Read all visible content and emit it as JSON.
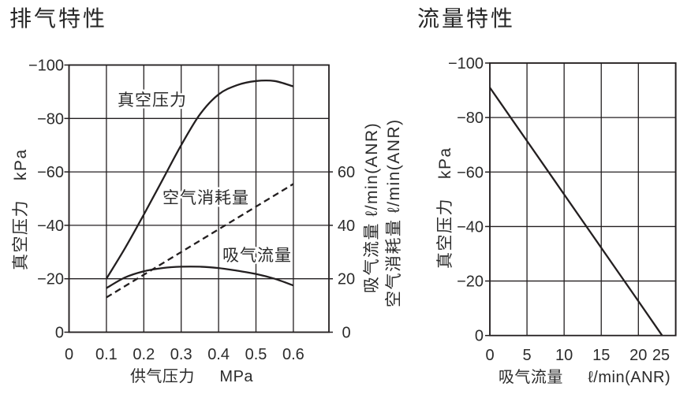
{
  "page": {
    "background": "#ffffff",
    "text_color": "#2b2b2b",
    "line_color": "#231f20"
  },
  "chart_data": [
    {
      "id": "exhaust",
      "type": "line",
      "title": "排气特性",
      "grid": true,
      "x_axis": {
        "title": "供气压力",
        "unit": "MPa",
        "tick_labels": [
          "0",
          "0.1",
          "0.2",
          "0.3",
          "0.4",
          "0.5",
          "0.6"
        ],
        "tick_values": [
          0,
          0.1,
          0.2,
          0.3,
          0.4,
          0.5,
          0.6
        ],
        "range": [
          0,
          0.695
        ]
      },
      "y_axis": {
        "title": "真空压力",
        "unit": "kPa",
        "tick_labels": [
          "0",
          "−20",
          "−40",
          "−60",
          "−80",
          "−100"
        ],
        "tick_values": [
          0,
          -20,
          -40,
          -60,
          -80,
          -100
        ],
        "range": [
          0,
          -100
        ]
      },
      "y2_axis": {
        "titles": [
          "吸气流量 ℓ/min(ANR)",
          "空气消耗量 ℓ/min(ANR)"
        ],
        "tick_labels": [
          "0",
          "20",
          "40",
          "60"
        ],
        "tick_values": [
          0,
          20,
          40,
          60
        ],
        "range": [
          0,
          100
        ]
      },
      "series": [
        {
          "key": "vacuum-pressure",
          "name": "真空压力",
          "axis": "y",
          "line": "solid",
          "points": [
            [
              0.1,
              -20
            ],
            [
              0.15,
              -31.5
            ],
            [
              0.2,
              -44
            ],
            [
              0.25,
              -57
            ],
            [
              0.3,
              -70
            ],
            [
              0.35,
              -81.5
            ],
            [
              0.4,
              -89
            ],
            [
              0.45,
              -92.5
            ],
            [
              0.5,
              -94
            ],
            [
              0.55,
              -94
            ],
            [
              0.6,
              -92
            ]
          ]
        },
        {
          "key": "air-consumption",
          "name": "空气消耗量",
          "axis": "y2",
          "line": "dashed",
          "points": [
            [
              0.1,
              13
            ],
            [
              0.2,
              21.5
            ],
            [
              0.3,
              30
            ],
            [
              0.4,
              38.5
            ],
            [
              0.5,
              47
            ],
            [
              0.6,
              55.5
            ]
          ]
        },
        {
          "key": "suction-flow",
          "name": "吸气流量",
          "axis": "y2",
          "line": "solid",
          "points": [
            [
              0.1,
              16.5
            ],
            [
              0.15,
              20.5
            ],
            [
              0.2,
              22.8
            ],
            [
              0.25,
              24
            ],
            [
              0.3,
              24.5
            ],
            [
              0.35,
              24.5
            ],
            [
              0.4,
              24
            ],
            [
              0.45,
              23
            ],
            [
              0.5,
              21.8
            ],
            [
              0.55,
              20
            ],
            [
              0.6,
              17.5
            ]
          ]
        }
      ]
    },
    {
      "id": "flow",
      "type": "line",
      "title": "流量特性",
      "grid": true,
      "x_axis": {
        "title": "吸气流量",
        "unit": "ℓ/min(ANR)",
        "tick_labels": [
          "0",
          "5",
          "10",
          "15",
          "20",
          "25"
        ],
        "tick_values": [
          0,
          5,
          10,
          15,
          20,
          25
        ],
        "range": [
          0,
          25
        ]
      },
      "y_axis": {
        "title": "真空压力",
        "unit": "kPa",
        "tick_labels": [
          "0",
          "−20",
          "−40",
          "−60",
          "−80",
          "−100"
        ],
        "tick_values": [
          0,
          -20,
          -40,
          -60,
          -80,
          -100
        ],
        "range": [
          0,
          -100
        ]
      },
      "series": [
        {
          "key": "vacuum-pressure",
          "name": "真空压力",
          "axis": "y",
          "line": "solid",
          "points": [
            [
              0,
              -91
            ],
            [
              5,
              -71.4
            ],
            [
              10,
              -51.8
            ],
            [
              15,
              -32.2
            ],
            [
              20,
              -12.6
            ],
            [
              23.2,
              0
            ]
          ]
        }
      ]
    }
  ]
}
